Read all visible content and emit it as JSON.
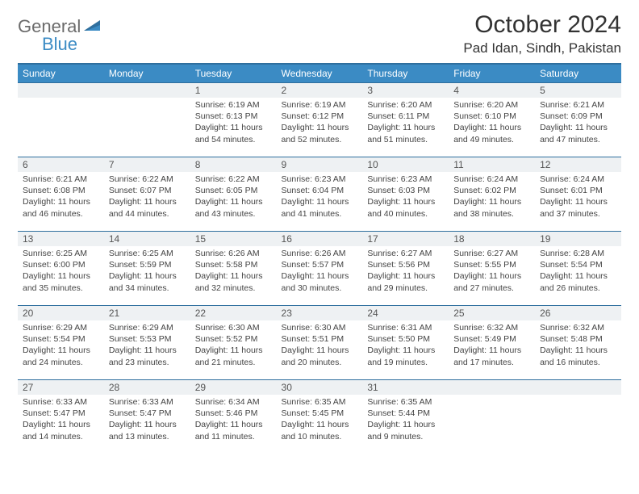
{
  "logo": {
    "part1": "General",
    "part2": "Blue"
  },
  "title": "October 2024",
  "location": "Pad Idan, Sindh, Pakistan",
  "colors": {
    "header_bg": "#3b8bc4",
    "header_border": "#2f6f9e",
    "daynum_bg": "#eef1f3",
    "text": "#333333"
  },
  "weekdays": [
    "Sunday",
    "Monday",
    "Tuesday",
    "Wednesday",
    "Thursday",
    "Friday",
    "Saturday"
  ],
  "weeks": [
    [
      null,
      null,
      {
        "n": "1",
        "sr": "6:19 AM",
        "ss": "6:13 PM",
        "dl": "11 hours and 54 minutes."
      },
      {
        "n": "2",
        "sr": "6:19 AM",
        "ss": "6:12 PM",
        "dl": "11 hours and 52 minutes."
      },
      {
        "n": "3",
        "sr": "6:20 AM",
        "ss": "6:11 PM",
        "dl": "11 hours and 51 minutes."
      },
      {
        "n": "4",
        "sr": "6:20 AM",
        "ss": "6:10 PM",
        "dl": "11 hours and 49 minutes."
      },
      {
        "n": "5",
        "sr": "6:21 AM",
        "ss": "6:09 PM",
        "dl": "11 hours and 47 minutes."
      }
    ],
    [
      {
        "n": "6",
        "sr": "6:21 AM",
        "ss": "6:08 PM",
        "dl": "11 hours and 46 minutes."
      },
      {
        "n": "7",
        "sr": "6:22 AM",
        "ss": "6:07 PM",
        "dl": "11 hours and 44 minutes."
      },
      {
        "n": "8",
        "sr": "6:22 AM",
        "ss": "6:05 PM",
        "dl": "11 hours and 43 minutes."
      },
      {
        "n": "9",
        "sr": "6:23 AM",
        "ss": "6:04 PM",
        "dl": "11 hours and 41 minutes."
      },
      {
        "n": "10",
        "sr": "6:23 AM",
        "ss": "6:03 PM",
        "dl": "11 hours and 40 minutes."
      },
      {
        "n": "11",
        "sr": "6:24 AM",
        "ss": "6:02 PM",
        "dl": "11 hours and 38 minutes."
      },
      {
        "n": "12",
        "sr": "6:24 AM",
        "ss": "6:01 PM",
        "dl": "11 hours and 37 minutes."
      }
    ],
    [
      {
        "n": "13",
        "sr": "6:25 AM",
        "ss": "6:00 PM",
        "dl": "11 hours and 35 minutes."
      },
      {
        "n": "14",
        "sr": "6:25 AM",
        "ss": "5:59 PM",
        "dl": "11 hours and 34 minutes."
      },
      {
        "n": "15",
        "sr": "6:26 AM",
        "ss": "5:58 PM",
        "dl": "11 hours and 32 minutes."
      },
      {
        "n": "16",
        "sr": "6:26 AM",
        "ss": "5:57 PM",
        "dl": "11 hours and 30 minutes."
      },
      {
        "n": "17",
        "sr": "6:27 AM",
        "ss": "5:56 PM",
        "dl": "11 hours and 29 minutes."
      },
      {
        "n": "18",
        "sr": "6:27 AM",
        "ss": "5:55 PM",
        "dl": "11 hours and 27 minutes."
      },
      {
        "n": "19",
        "sr": "6:28 AM",
        "ss": "5:54 PM",
        "dl": "11 hours and 26 minutes."
      }
    ],
    [
      {
        "n": "20",
        "sr": "6:29 AM",
        "ss": "5:54 PM",
        "dl": "11 hours and 24 minutes."
      },
      {
        "n": "21",
        "sr": "6:29 AM",
        "ss": "5:53 PM",
        "dl": "11 hours and 23 minutes."
      },
      {
        "n": "22",
        "sr": "6:30 AM",
        "ss": "5:52 PM",
        "dl": "11 hours and 21 minutes."
      },
      {
        "n": "23",
        "sr": "6:30 AM",
        "ss": "5:51 PM",
        "dl": "11 hours and 20 minutes."
      },
      {
        "n": "24",
        "sr": "6:31 AM",
        "ss": "5:50 PM",
        "dl": "11 hours and 19 minutes."
      },
      {
        "n": "25",
        "sr": "6:32 AM",
        "ss": "5:49 PM",
        "dl": "11 hours and 17 minutes."
      },
      {
        "n": "26",
        "sr": "6:32 AM",
        "ss": "5:48 PM",
        "dl": "11 hours and 16 minutes."
      }
    ],
    [
      {
        "n": "27",
        "sr": "6:33 AM",
        "ss": "5:47 PM",
        "dl": "11 hours and 14 minutes."
      },
      {
        "n": "28",
        "sr": "6:33 AM",
        "ss": "5:47 PM",
        "dl": "11 hours and 13 minutes."
      },
      {
        "n": "29",
        "sr": "6:34 AM",
        "ss": "5:46 PM",
        "dl": "11 hours and 11 minutes."
      },
      {
        "n": "30",
        "sr": "6:35 AM",
        "ss": "5:45 PM",
        "dl": "11 hours and 10 minutes."
      },
      {
        "n": "31",
        "sr": "6:35 AM",
        "ss": "5:44 PM",
        "dl": "11 hours and 9 minutes."
      },
      null,
      null
    ]
  ],
  "labels": {
    "sunrise": "Sunrise: ",
    "sunset": "Sunset: ",
    "daylight": "Daylight: "
  }
}
